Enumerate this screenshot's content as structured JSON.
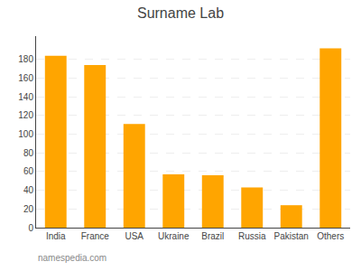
{
  "chart_data": {
    "type": "bar",
    "title": "Surname Lab",
    "categories": [
      "India",
      "France",
      "USA",
      "Ukraine",
      "Brazil",
      "Russia",
      "Pakistan",
      "Others"
    ],
    "values": [
      184,
      174,
      111,
      57,
      56,
      43,
      24,
      192
    ],
    "color": "#FFA500",
    "ylim": [
      0,
      205
    ],
    "yticks": [
      0,
      20,
      40,
      60,
      80,
      100,
      120,
      140,
      160,
      180
    ],
    "grid": true,
    "annotations": [
      "namespedia.com"
    ]
  }
}
